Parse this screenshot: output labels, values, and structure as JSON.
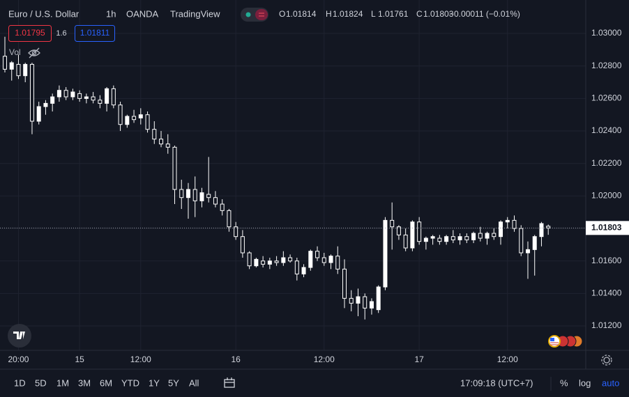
{
  "header": {
    "symbol": "Euro / U.S. Dollar",
    "interval": "1h",
    "broker": "OANDA",
    "platform": "TradingView",
    "ohlc": [
      {
        "label": "O",
        "value": "1.01814"
      },
      {
        "label": "H",
        "value": "1.01824"
      },
      {
        "label": "L",
        "value": "1.01761"
      },
      {
        "label": "C",
        "value": "1.01803"
      }
    ],
    "change": "−0.00011 (−0.01%)"
  },
  "order_panel": {
    "sell": "1.01795",
    "spread": "1.6",
    "buy": "1.01811"
  },
  "indicator": "Vol",
  "chart_data": {
    "type": "candlestick",
    "categories": [
      null,
      null,
      "20:00",
      null,
      null,
      null,
      null,
      null,
      null,
      null,
      null,
      "15",
      null,
      null,
      null,
      null,
      null,
      null,
      null,
      null,
      "12:00",
      null,
      null,
      null,
      null,
      null,
      null,
      null,
      null,
      null,
      null,
      null,
      null,
      null,
      "16",
      null,
      null,
      null,
      null,
      null,
      null,
      null,
      null,
      null,
      null,
      null,
      null,
      "12:00",
      null,
      null,
      null,
      null,
      null,
      null,
      null,
      null,
      null,
      null,
      null,
      null,
      null,
      "17",
      null,
      null,
      null,
      null,
      null,
      null,
      null,
      null,
      null,
      null,
      null,
      null,
      "12:00",
      null,
      null,
      null,
      null,
      null,
      null
    ],
    "open": [
      1.0286,
      1.0278,
      1.0281,
      1.0274,
      1.0281,
      1.0246,
      1.0255,
      1.0257,
      1.0261,
      1.0265,
      1.0261,
      1.0263,
      1.026,
      1.0261,
      1.0259,
      1.0257,
      1.0266,
      1.0256,
      1.0244,
      1.0249,
      1.0248,
      1.025,
      1.0241,
      1.0235,
      1.0232,
      1.023,
      1.0204,
      1.0199,
      1.0204,
      1.0197,
      1.0201,
      1.0199,
      1.0195,
      1.0191,
      1.0181,
      1.0175,
      1.0165,
      1.0157,
      1.016,
      1.0158,
      1.016,
      1.0159,
      1.0162,
      1.016,
      1.0152,
      1.0156,
      1.0166,
      1.0162,
      1.0159,
      1.0163,
      1.0155,
      1.0137,
      1.0134,
      1.0138,
      1.0131,
      1.013,
      1.0144,
      1.0185,
      1.0181,
      1.0176,
      1.0168,
      1.0184,
      1.0172,
      1.0174,
      1.0174,
      1.0172,
      1.0175,
      1.0173,
      1.0175,
      1.0173,
      1.0177,
      1.0174,
      1.0177,
      1.0175,
      1.0184,
      1.0185,
      1.018,
      1.0165,
      1.0167,
      1.0175,
      1.01814
    ],
    "high": [
      1.0298,
      1.0283,
      1.0287,
      1.0282,
      1.0282,
      1.0258,
      1.0259,
      1.0263,
      1.0268,
      1.0267,
      1.0266,
      1.0265,
      1.0263,
      1.0264,
      1.0262,
      1.0267,
      1.0268,
      1.0258,
      1.025,
      1.0253,
      1.0254,
      1.0252,
      1.0246,
      1.024,
      1.0238,
      1.0231,
      1.021,
      1.0208,
      1.0212,
      1.0205,
      1.0224,
      1.0203,
      1.0198,
      1.0192,
      1.0184,
      1.0179,
      1.0166,
      1.0162,
      1.0163,
      1.0162,
      1.0163,
      1.0166,
      1.0164,
      1.0162,
      1.0158,
      1.0167,
      1.0169,
      1.0165,
      1.0164,
      1.0169,
      1.0161,
      1.0142,
      1.0143,
      1.014,
      1.0137,
      1.0145,
      1.0187,
      1.0196,
      1.0182,
      1.018,
      1.0185,
      1.0187,
      1.0175,
      1.0176,
      1.0176,
      1.0176,
      1.0179,
      1.0177,
      1.0177,
      1.0178,
      1.0181,
      1.0178,
      1.018,
      1.0185,
      1.0187,
      1.0188,
      1.0182,
      1.0172,
      1.0176,
      1.0184,
      1.01824
    ],
    "low": [
      1.0276,
      1.0271,
      1.0272,
      1.027,
      1.0238,
      1.0244,
      1.025,
      1.0252,
      1.0258,
      1.0259,
      1.0259,
      1.0258,
      1.0257,
      1.0257,
      1.0254,
      1.0252,
      1.0254,
      1.024,
      1.0242,
      1.0245,
      1.0244,
      1.0239,
      1.0232,
      1.023,
      1.0226,
      1.0195,
      1.0192,
      1.0186,
      1.0187,
      1.0193,
      1.0196,
      1.0193,
      1.0188,
      1.0178,
      1.0173,
      1.0162,
      1.0155,
      1.0156,
      1.0156,
      1.0155,
      1.0157,
      1.0157,
      1.0159,
      1.0148,
      1.015,
      1.0154,
      1.016,
      1.0157,
      1.0155,
      1.0152,
      1.0131,
      1.0129,
      1.0126,
      1.0124,
      1.0127,
      1.0128,
      1.0142,
      1.0167,
      1.0173,
      1.0166,
      1.0166,
      1.017,
      1.0167,
      1.017,
      1.017,
      1.017,
      1.0171,
      1.017,
      1.0171,
      1.0171,
      1.0172,
      1.017,
      1.0173,
      1.017,
      1.018,
      1.0178,
      1.0163,
      1.0149,
      1.0151,
      1.0169,
      1.01761
    ],
    "close": [
      1.0278,
      1.0282,
      1.0274,
      1.0281,
      1.0246,
      1.0255,
      1.0257,
      1.0261,
      1.0265,
      1.0261,
      1.0264,
      1.026,
      1.0261,
      1.0259,
      1.0257,
      1.0266,
      1.0256,
      1.0244,
      1.0249,
      1.0247,
      1.025,
      1.0241,
      1.0235,
      1.0232,
      1.023,
      1.0204,
      1.0199,
      1.0204,
      1.0197,
      1.0202,
      1.0199,
      1.0195,
      1.0191,
      1.0181,
      1.0175,
      1.0165,
      1.0157,
      1.0161,
      1.0158,
      1.016,
      1.0159,
      1.0162,
      1.016,
      1.0152,
      1.0156,
      1.0166,
      1.0162,
      1.0159,
      1.0163,
      1.0155,
      1.0137,
      1.0134,
      1.0138,
      1.0131,
      1.0135,
      1.0144,
      1.0185,
      1.0181,
      1.0176,
      1.0168,
      1.0184,
      1.0172,
      1.0174,
      1.0175,
      1.0172,
      1.0175,
      1.0173,
      1.0175,
      1.0173,
      1.0177,
      1.0174,
      1.0177,
      1.0175,
      1.0184,
      1.0185,
      1.018,
      1.0165,
      1.0167,
      1.0175,
      1.0183,
      1.01803
    ],
    "ylim": [
      1.0105,
      1.03206
    ],
    "yticks": [
      {
        "value": 1.012,
        "label": "1.01200"
      },
      {
        "value": 1.014,
        "label": "1.01400"
      },
      {
        "value": 1.016,
        "label": "1.01600"
      },
      {
        "value": 1.018,
        "label": "1.01800"
      },
      {
        "value": 1.02,
        "label": "1.02000"
      },
      {
        "value": 1.022,
        "label": "1.02200"
      },
      {
        "value": 1.024,
        "label": "1.02400"
      },
      {
        "value": 1.026,
        "label": "1.02600"
      },
      {
        "value": 1.028,
        "label": "1.02800"
      },
      {
        "value": 1.03,
        "label": "1.03000"
      }
    ],
    "last_price": 1.01803,
    "grid": true,
    "up_color": "#ffffff",
    "down_color": "#131722"
  },
  "toolbar": {
    "ranges": [
      "1D",
      "5D",
      "1M",
      "3M",
      "6M",
      "YTD",
      "1Y",
      "5Y",
      "All"
    ],
    "clock": "17:09:18 (UTC+7)",
    "options": [
      "%",
      "log",
      "auto"
    ]
  }
}
